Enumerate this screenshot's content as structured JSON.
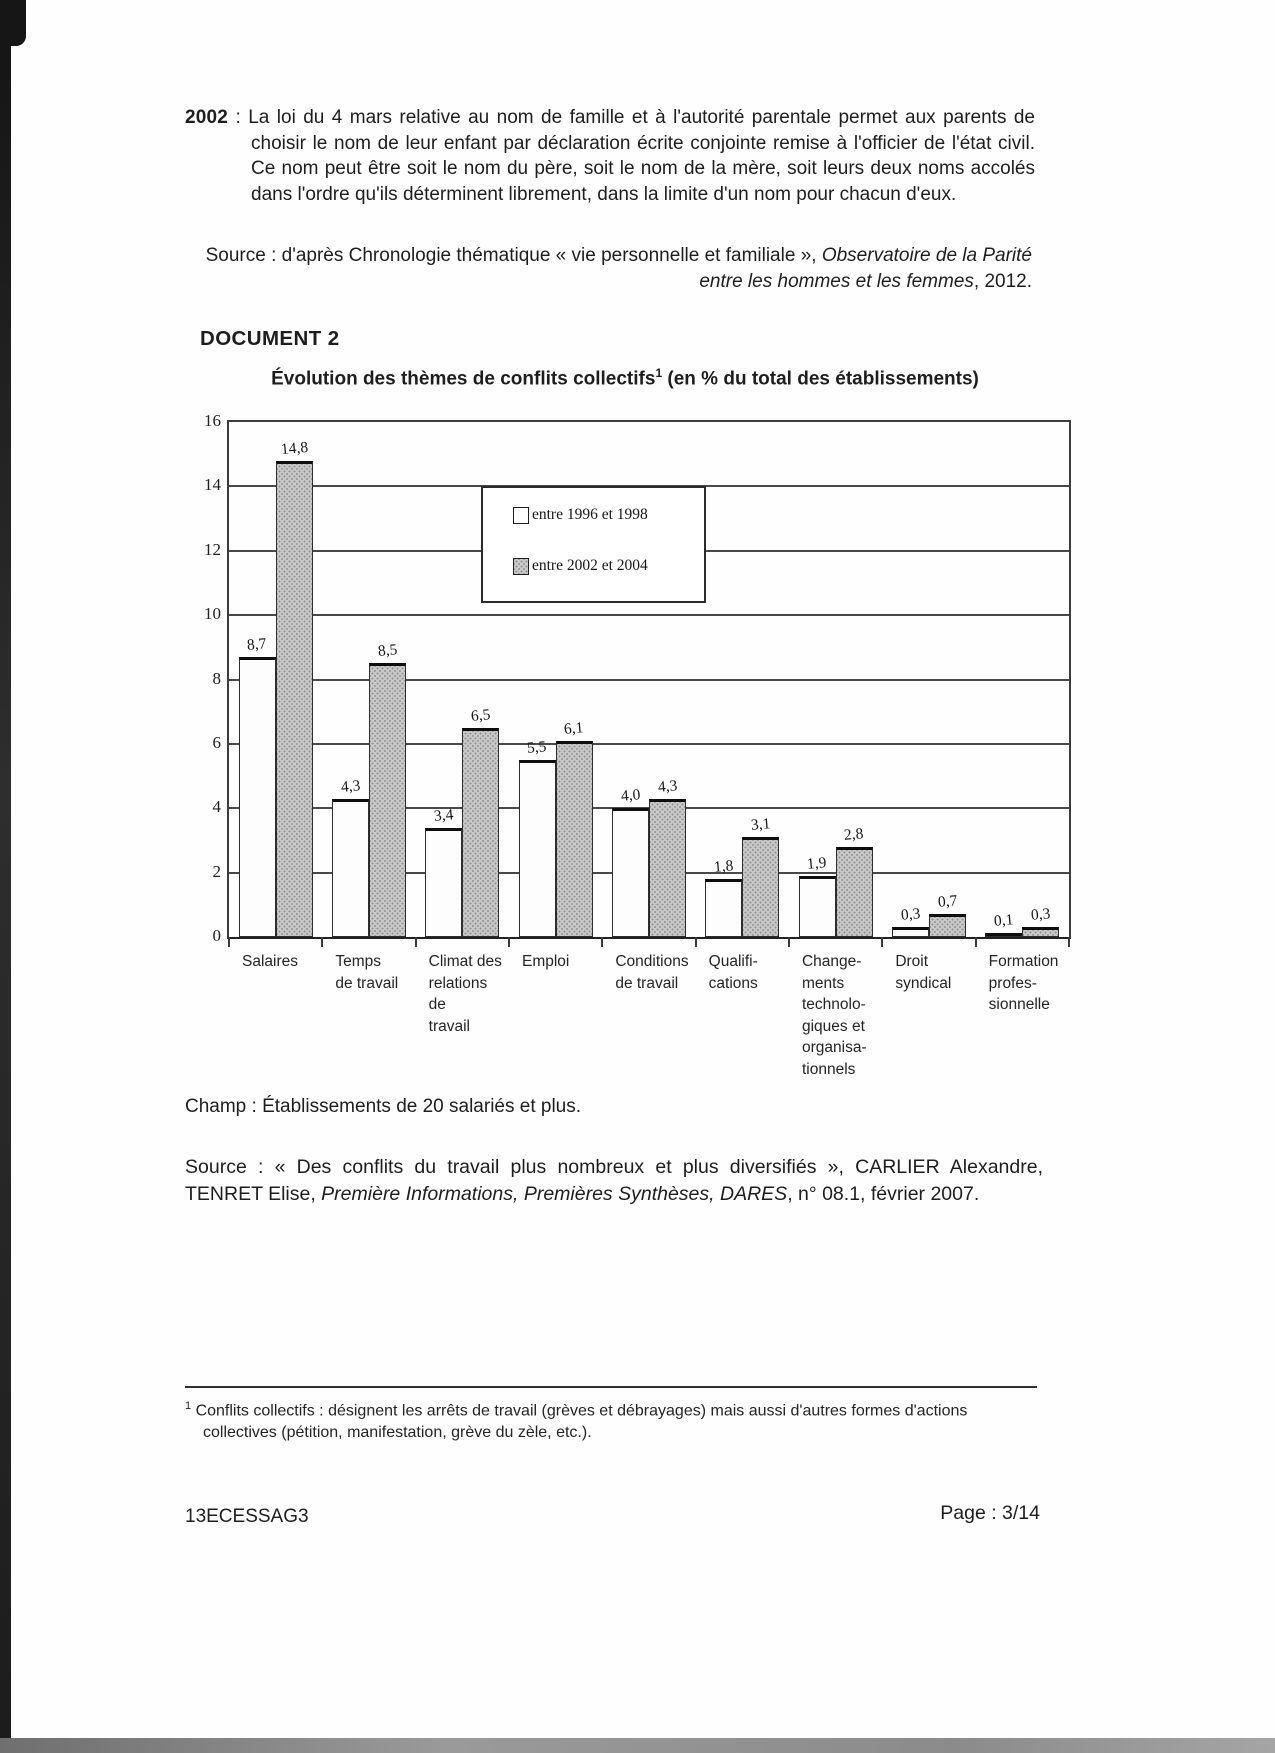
{
  "intro": {
    "year": "2002",
    "colon": " : ",
    "body": "La loi du 4 mars relative au nom de famille et à l'autorité parentale permet aux parents de choisir le nom de leur enfant par déclaration écrite conjointe remise à l'officier de l'état civil. Ce nom peut être soit le nom du père, soit le nom de la mère, soit leurs deux noms accolés dans l'ordre qu'ils déterminent librement, dans la limite d'un nom pour chacun d'eux."
  },
  "intro_source": {
    "prefix": "Source : d'après Chronologie thématique « vie personnelle et familiale », ",
    "italic": "Observatoire de la Parité entre les hommes et les femmes",
    "suffix": ", 2012."
  },
  "document2": {
    "heading": "DOCUMENT 2",
    "title_main": "Évolution des thèmes de conflits collectifs",
    "title_ref": "1",
    "title_suffix": " (en % du total des établissements)"
  },
  "chart_data": {
    "type": "bar",
    "title": "Évolution des thèmes de conflits collectifs (en % du total des établissements)",
    "ylabel": "% du total des établissements",
    "xlabel": "",
    "ylim": [
      0,
      16
    ],
    "ytick_step": 2,
    "grid": true,
    "legend_position": "inside top-center",
    "categories": [
      "Salaires",
      "Temps de travail",
      "Climat des relations de travail",
      "Emploi",
      "Conditions de travail",
      "Qualifications",
      "Changements technologiques et organisationnels",
      "Droit syndical",
      "Formation professionnelle"
    ],
    "category_label_lines": [
      [
        "Salaires"
      ],
      [
        "Temps",
        "de travail"
      ],
      [
        "Climat des",
        "relations de",
        "travail"
      ],
      [
        "Emploi"
      ],
      [
        "Conditions",
        "de travail"
      ],
      [
        "Qualifi-",
        "cations"
      ],
      [
        "Change-",
        "ments",
        "technolo-",
        "giques et",
        "organisa-",
        "tionnels"
      ],
      [
        "Droit",
        "syndical"
      ],
      [
        "Formation",
        "profes-",
        "sionnelle"
      ]
    ],
    "series": [
      {
        "name": "entre 1996 et 1998",
        "fill": "#ffffff",
        "values": [
          8.7,
          4.3,
          3.4,
          5.5,
          4.0,
          1.8,
          1.9,
          0.3,
          0.1
        ],
        "labels": [
          "8,7",
          "4,3",
          "3,4",
          "5,5",
          "4,0",
          "1,8",
          "1,9",
          "0,3",
          "0,1"
        ]
      },
      {
        "name": "entre 2002 et 2004",
        "fill": "#c9c9c9",
        "values": [
          14.8,
          8.5,
          6.5,
          6.1,
          4.3,
          3.1,
          2.8,
          0.7,
          0.3
        ],
        "labels": [
          "14,8",
          "8,5",
          "6,5",
          "6,1",
          "4,3",
          "3,1",
          "2,8",
          "0,7",
          "0,3"
        ]
      }
    ]
  },
  "champ": "Champ : Établissements de 20 salariés et plus.",
  "chart_source": {
    "prefix": "Source : « Des conflits du travail plus nombreux et plus diversifiés », CARLIER Alexandre, TENRET Elise, ",
    "italic": "Première Informations, Premières Synthèses, DARES",
    "suffix": ", n° 08.1, février 2007."
  },
  "footnote": {
    "ref": "1",
    "text": "Conflits collectifs : désignent les arrêts de travail (grèves et débrayages) mais aussi d'autres formes d'actions collectives (pétition, manifestation, grève du zèle, etc.)."
  },
  "footer": {
    "left": "13ECESSAG3",
    "right": "Page : 3/14"
  }
}
